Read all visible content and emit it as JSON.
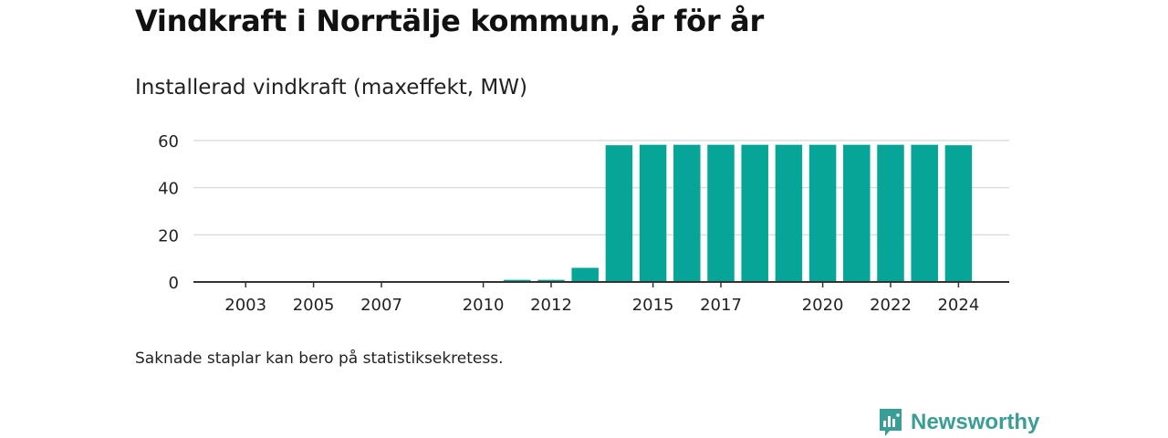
{
  "title": "Vindkraft i Norrtälje kommun, år för år",
  "subtitle": "Installerad vindkraft (maxeffekt, MW)",
  "footnote": "Saknade staplar kan bero på statistiksekretess.",
  "brand": {
    "name": "Newsworthy",
    "icon": "newsworthy-logo-icon",
    "color": "#3a9d96"
  },
  "colors": {
    "bar": "#06a597",
    "grid": "#dddddd",
    "axis": "#333333",
    "text": "#222222"
  },
  "chart_data": {
    "type": "bar",
    "title": "Vindkraft i Norrtälje kommun, år för år",
    "subtitle": "Installerad vindkraft (maxeffekt, MW)",
    "xlabel": "",
    "ylabel": "",
    "ylim": [
      0,
      60
    ],
    "yticks": [
      0,
      20,
      40,
      60
    ],
    "grid": true,
    "categories": [
      "2002",
      "2003",
      "2004",
      "2005",
      "2006",
      "2007",
      "2008",
      "2009",
      "2010",
      "2011",
      "2012",
      "2013",
      "2014",
      "2015",
      "2016",
      "2017",
      "2018",
      "2019",
      "2020",
      "2021",
      "2022",
      "2023",
      "2024"
    ],
    "xtick_labels": [
      "2003",
      "2005",
      "2007",
      "2010",
      "2012",
      "2015",
      "2017",
      "2020",
      "2022",
      "2024"
    ],
    "values": [
      0,
      0,
      0,
      0,
      0,
      0,
      0,
      0,
      0,
      0.9,
      0.9,
      6,
      58,
      58.2,
      58.2,
      58.2,
      58.2,
      58.2,
      58.2,
      58.2,
      58.2,
      58.2,
      58
    ]
  }
}
